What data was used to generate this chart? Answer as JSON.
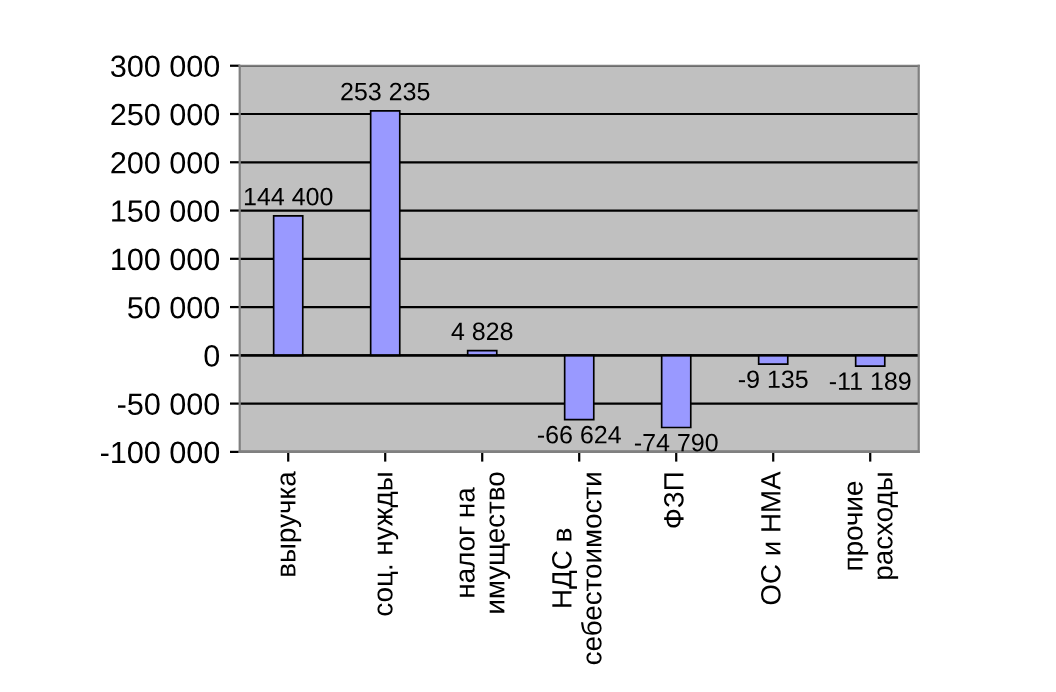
{
  "chart_data": {
    "type": "bar",
    "categories": [
      "выручка",
      "соц. нужды",
      "налог на\nимущество",
      "НДС в\nсебестоимости",
      "ФЗП",
      "ОС и НМА",
      "прочие\nрасходы"
    ],
    "values": [
      144400,
      253235,
      4828,
      -66624,
      -74790,
      -9135,
      -11189
    ],
    "value_labels": [
      "144 400",
      "253 235",
      "4 828",
      "-66 624",
      "-74 790",
      "-9 135",
      "-11 189"
    ],
    "color": "#9999ff",
    "ylim": [
      -100000,
      300000
    ],
    "yticks": [
      {
        "value": -100000,
        "label": "-100 000"
      },
      {
        "value": -50000,
        "label": "-50 000"
      },
      {
        "value": 0,
        "label": "0"
      },
      {
        "value": 50000,
        "label": "50 000"
      },
      {
        "value": 100000,
        "label": "100 000"
      },
      {
        "value": 150000,
        "label": "150 000"
      },
      {
        "value": 200000,
        "label": "200 000"
      },
      {
        "value": 250000,
        "label": "250 000"
      },
      {
        "value": 300000,
        "label": "300 000"
      }
    ],
    "grid": "y",
    "legend": false
  }
}
